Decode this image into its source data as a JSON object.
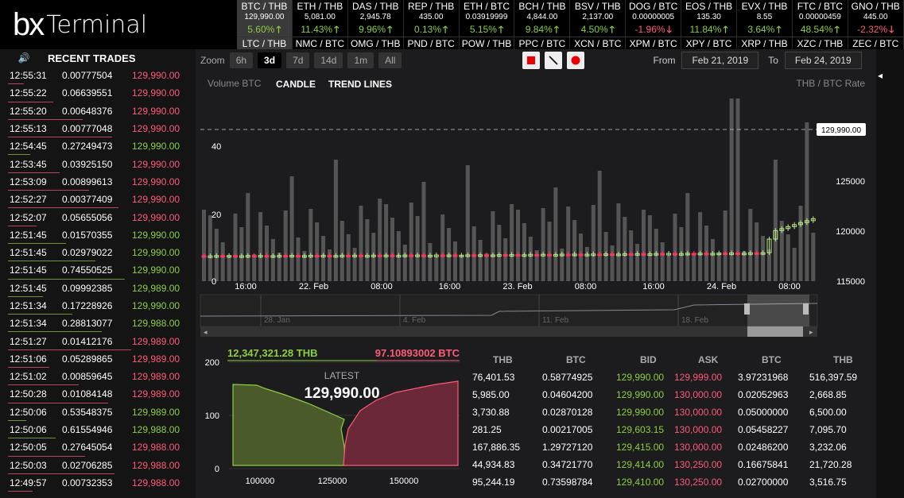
{
  "logo": {
    "bx": "bx",
    "term": "Terminal"
  },
  "ticker": [
    {
      "pair": "BTC / THB",
      "price": "129,990.00",
      "chg": "5.60%",
      "dir": "up",
      "pair2": "LTC / THB",
      "active": true
    },
    {
      "pair": "ETH / THB",
      "price": "5,081.00",
      "chg": "11.43%",
      "dir": "up",
      "pair2": "NMC / BTC"
    },
    {
      "pair": "DAS / THB",
      "price": "2,945.78",
      "chg": "9.96%",
      "dir": "up",
      "pair2": "OMG / THB"
    },
    {
      "pair": "REP / THB",
      "price": "435.00",
      "chg": "0.13%",
      "dir": "up",
      "pair2": "PND / BTC"
    },
    {
      "pair": "ETH / BTC",
      "price": "0.03919999",
      "chg": "5.15%",
      "dir": "up",
      "pair2": "POW / THB"
    },
    {
      "pair": "BCH / THB",
      "price": "4,844.00",
      "chg": "9.84%",
      "dir": "up",
      "pair2": "PPC / BTC"
    },
    {
      "pair": "BSV / THB",
      "price": "2,137.00",
      "chg": "4.50%",
      "dir": "up",
      "pair2": "XCN / BTC"
    },
    {
      "pair": "DOG / BTC",
      "price": "0.00000005",
      "chg": "-1.96%",
      "dir": "down",
      "pair2": "XPM / BTC"
    },
    {
      "pair": "EOS / THB",
      "price": "135.30",
      "chg": "11.84%",
      "dir": "up",
      "pair2": "XPY / BTC"
    },
    {
      "pair": "EVX / THB",
      "price": "8.55",
      "chg": "3.64%",
      "dir": "up",
      "pair2": "XRP / THB"
    },
    {
      "pair": "FTC / BTC",
      "price": "0.00000459",
      "chg": "48.54%",
      "dir": "up",
      "pair2": "XZC / THB"
    },
    {
      "pair": "GNO / THB",
      "price": "445.00",
      "chg": "-2.32%",
      "dir": "down",
      "pair2": "ZEC / BTC"
    }
  ],
  "recent": {
    "title": "RECENT TRADES",
    "trades": [
      {
        "t": "12:55:31",
        "a": "0.00777504",
        "p": "129,990.00",
        "s": "sell"
      },
      {
        "t": "12:55:22",
        "a": "0.06639551",
        "p": "129,990.00",
        "s": "sell"
      },
      {
        "t": "12:55:20",
        "a": "0.00648376",
        "p": "129,990.00",
        "s": "sell"
      },
      {
        "t": "12:55:13",
        "a": "0.00777048",
        "p": "129,990.00",
        "s": "sell"
      },
      {
        "t": "12:54:45",
        "a": "0.27249473",
        "p": "129,990.00",
        "s": "buy"
      },
      {
        "t": "12:53:45",
        "a": "0.03925150",
        "p": "129,990.00",
        "s": "sell"
      },
      {
        "t": "12:53:09",
        "a": "0.00899613",
        "p": "129,990.00",
        "s": "sell"
      },
      {
        "t": "12:52:27",
        "a": "0.00377409",
        "p": "129,990.00",
        "s": "sell"
      },
      {
        "t": "12:52:07",
        "a": "0.05655056",
        "p": "129,990.00",
        "s": "sell"
      },
      {
        "t": "12:51:45",
        "a": "0.01570355",
        "p": "129,990.00",
        "s": "buy"
      },
      {
        "t": "12:51:45",
        "a": "0.02979022",
        "p": "129,990.00",
        "s": "buy"
      },
      {
        "t": "12:51:45",
        "a": "0.74550525",
        "p": "129,990.00",
        "s": "buy"
      },
      {
        "t": "12:51:45",
        "a": "0.09992385",
        "p": "129,989.00",
        "s": "buy"
      },
      {
        "t": "12:51:34",
        "a": "0.17228926",
        "p": "129,990.00",
        "s": "buy"
      },
      {
        "t": "12:51:34",
        "a": "0.28813077",
        "p": "129,988.00",
        "s": "buy"
      },
      {
        "t": "12:51:27",
        "a": "0.01412176",
        "p": "129,989.00",
        "s": "sell"
      },
      {
        "t": "12:51:06",
        "a": "0.05289865",
        "p": "129,989.00",
        "s": "sell"
      },
      {
        "t": "12:51:02",
        "a": "0.00859645",
        "p": "129,989.00",
        "s": "sell"
      },
      {
        "t": "12:50:28",
        "a": "0.01084148",
        "p": "129,989.00",
        "s": "sell"
      },
      {
        "t": "12:50:06",
        "a": "0.53548375",
        "p": "129,989.00",
        "s": "buy"
      },
      {
        "t": "12:50:06",
        "a": "0.61554946",
        "p": "129,988.00",
        "s": "buy"
      },
      {
        "t": "12:50:05",
        "a": "0.27645054",
        "p": "129,988.00",
        "s": "sell"
      },
      {
        "t": "12:50:03",
        "a": "0.02706285",
        "p": "129,988.00",
        "s": "sell"
      },
      {
        "t": "12:49:57",
        "a": "0.00732353",
        "p": "129,988.00",
        "s": "sell"
      }
    ]
  },
  "toolbar": {
    "zoom": "Zoom",
    "zooms": [
      "6h",
      "3d",
      "7d",
      "14d",
      "1m",
      "All"
    ],
    "from": "From",
    "from_val": "Feb 21, 2019",
    "to": "To",
    "to_val": "Feb 24, 2019"
  },
  "chart": {
    "vol_label": "Volume BTC",
    "candle": "CANDLE",
    "trend": "TREND LINES",
    "rate_label": "THB / BTC Rate",
    "last": "129,990.00",
    "yright": [
      "125000",
      "120000",
      "115000"
    ],
    "yleft": [
      "40",
      "20",
      "0"
    ],
    "xticks": [
      "16:00",
      "22. Feb",
      "08:00",
      "16:00",
      "23. Feb",
      "08:00",
      "16:00",
      "24. Feb",
      "08:00"
    ],
    "nav": [
      "28. Jan",
      "4. Feb",
      "11. Feb",
      "18. Feb"
    ]
  },
  "depth": {
    "thb": "12,347,321.28 THB",
    "btc": "97.10893002 BTC",
    "latest": "LATEST",
    "price": "129,990.00",
    "y": [
      "200",
      "100",
      "0"
    ],
    "x": [
      "100000",
      "125000",
      "150000"
    ]
  },
  "book": {
    "headers": [
      "THB",
      "BTC",
      "BID",
      "ASK",
      "BTC",
      "THB"
    ],
    "rows": [
      [
        "76,401.53",
        "0.58774925",
        "129,990.00",
        "129,999.00",
        "3.97231968",
        "516,397.59"
      ],
      [
        "5,985.00",
        "0.04604200",
        "129,990.00",
        "130,000.00",
        "0.02052963",
        "2,668.85"
      ],
      [
        "3,730.88",
        "0.02870128",
        "129,990.00",
        "130,000.00",
        "0.05000000",
        "6,500.00"
      ],
      [
        "281.25",
        "0.00217005",
        "129,603.15",
        "130,000.00",
        "0.05458227",
        "7,095.70"
      ],
      [
        "167,886.35",
        "1.29727120",
        "129,415.00",
        "130,000.00",
        "0.02486200",
        "3,232.06"
      ],
      [
        "44,934.83",
        "0.34721770",
        "129,414.00",
        "130,250.00",
        "0.16675841",
        "21,720.28"
      ],
      [
        "95,244.19",
        "0.73598784",
        "129,410.00",
        "130,250.00",
        "0.02700000",
        "3,516.75"
      ]
    ]
  },
  "colors": {
    "up": "#8dcf3f",
    "down": "#ff5a78"
  }
}
